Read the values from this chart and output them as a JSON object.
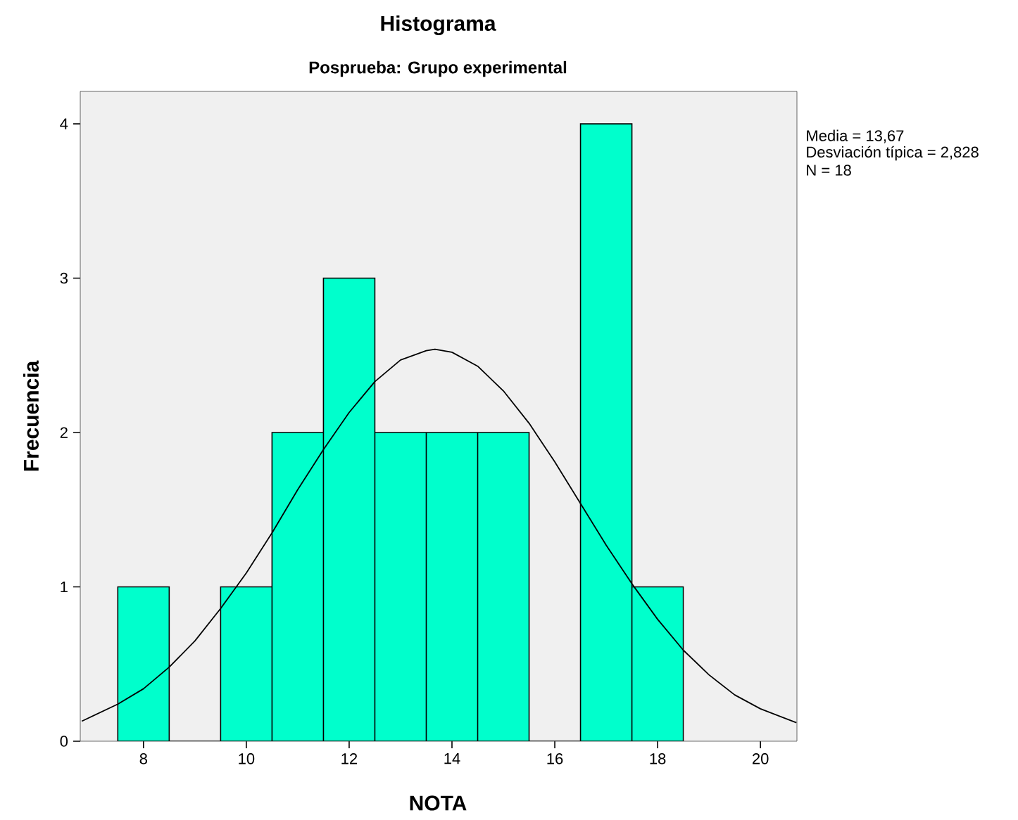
{
  "chart_data": {
    "type": "histogram",
    "title": "Histograma",
    "subtitle": "Posprueba: Grupo experimental",
    "xlabel": "NOTA",
    "ylabel": "Frecuencia",
    "bins": [
      7.5,
      8.5,
      9.5,
      10.5,
      11.5,
      12.5,
      13.5,
      14.5,
      15.5,
      16.5,
      17.5,
      18.5
    ],
    "values": [
      1,
      0,
      1,
      2,
      3,
      2,
      2,
      2,
      0,
      4,
      1
    ],
    "color": "#00ffcc",
    "series": [
      {
        "type": "line",
        "color": "#000000",
        "x": [
          6.8,
          7.5,
          8,
          8.5,
          9,
          9.5,
          10,
          10.5,
          11,
          11.5,
          12,
          12.5,
          13,
          13.5,
          13.67,
          14,
          14.5,
          15,
          15.5,
          16,
          16.5,
          17,
          17.5,
          18,
          18.5,
          19,
          19.5,
          20,
          20.7
        ],
        "values": [
          0.13,
          0.24,
          0.34,
          0.48,
          0.65,
          0.86,
          1.09,
          1.35,
          1.63,
          1.89,
          2.13,
          2.33,
          2.47,
          2.53,
          2.54,
          2.52,
          2.43,
          2.27,
          2.06,
          1.81,
          1.54,
          1.27,
          1.02,
          0.79,
          0.59,
          0.43,
          0.3,
          0.21,
          0.12
        ]
      }
    ],
    "annotations": [
      "Media = 13,67",
      "Desviación típica = 2,828",
      "N = 18"
    ],
    "xlim": [
      6.77,
      20.71
    ],
    "ylim": [
      0,
      4.21
    ],
    "xticks": [
      8,
      10,
      12,
      14,
      16,
      18,
      20
    ],
    "yticks": [
      0,
      1,
      2,
      3,
      4
    ]
  }
}
